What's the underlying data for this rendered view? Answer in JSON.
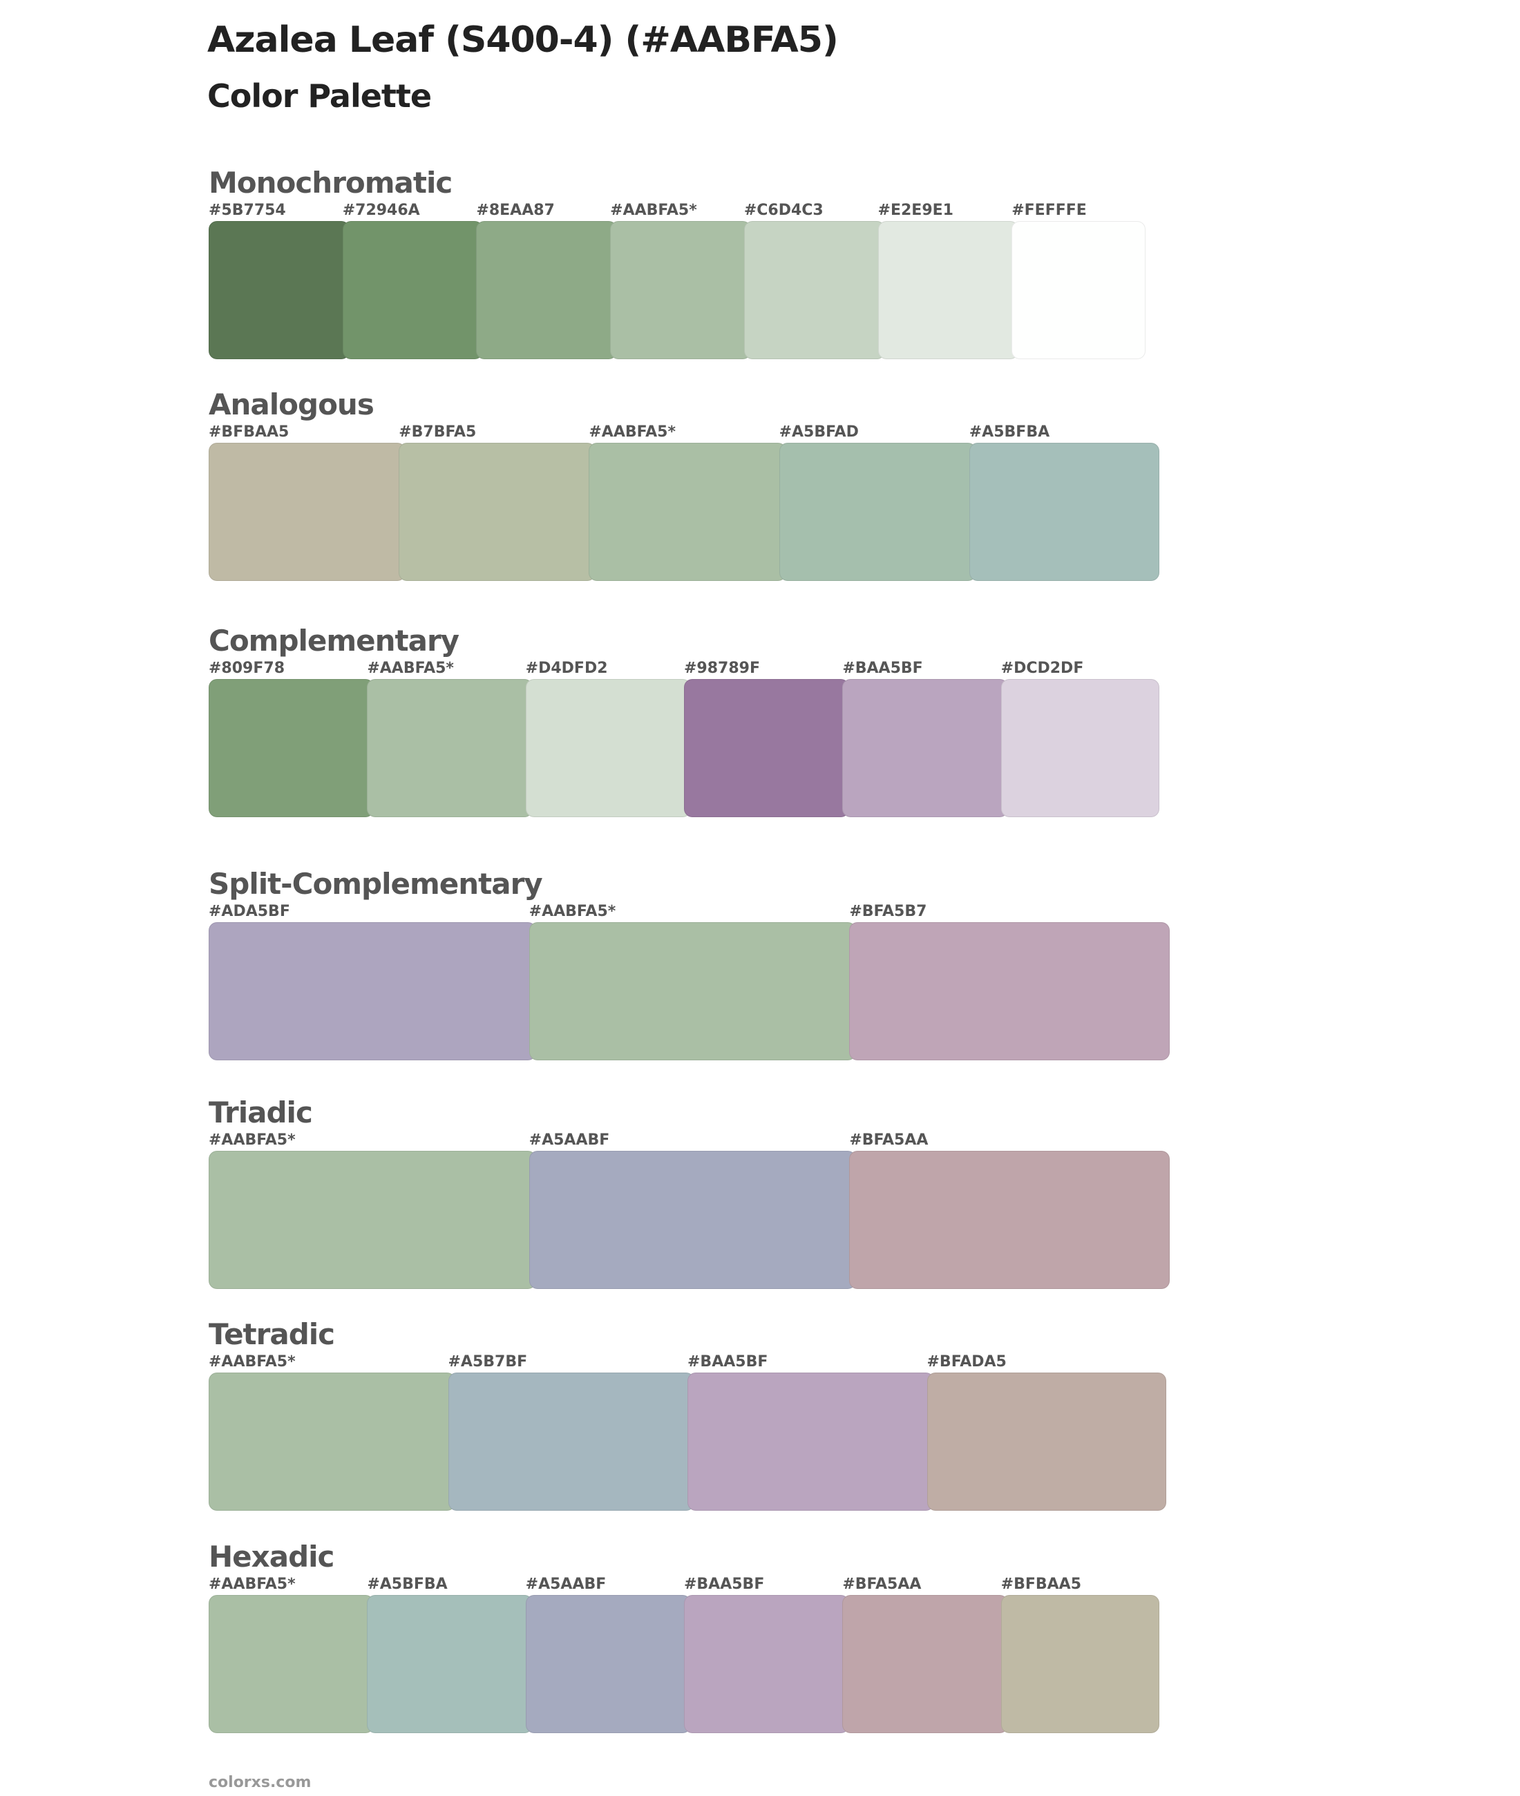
{
  "header": {
    "title": "Azalea Leaf (S400-4) (#AABFA5)",
    "subtitle": "Color Palette"
  },
  "sections": [
    {
      "title": "Monochromatic",
      "colors": [
        {
          "label": "#5B7754",
          "hex": "#5B7754"
        },
        {
          "label": "#72946A",
          "hex": "#72946A"
        },
        {
          "label": "#8EAA87",
          "hex": "#8EAA87"
        },
        {
          "label": "#AABFA5*",
          "hex": "#AABFA5"
        },
        {
          "label": "#C6D4C3",
          "hex": "#C6D4C3"
        },
        {
          "label": "#E2E9E1",
          "hex": "#E2E9E1"
        },
        {
          "label": "#FEFFFE",
          "hex": "#FEFFFE"
        }
      ]
    },
    {
      "title": "Analogous",
      "colors": [
        {
          "label": "#BFBAA5",
          "hex": "#BFBAA5"
        },
        {
          "label": "#B7BFA5",
          "hex": "#B7BFA5"
        },
        {
          "label": "#AABFA5*",
          "hex": "#AABFA5"
        },
        {
          "label": "#A5BFAD",
          "hex": "#A5BFAD"
        },
        {
          "label": "#A5BFBA",
          "hex": "#A5BFBA"
        }
      ]
    },
    {
      "title": "Complementary",
      "colors": [
        {
          "label": "#809F78",
          "hex": "#809F78"
        },
        {
          "label": "#AABFA5*",
          "hex": "#AABFA5"
        },
        {
          "label": "#D4DFD2",
          "hex": "#D4DFD2"
        },
        {
          "label": "#98789F",
          "hex": "#98789F"
        },
        {
          "label": "#BAA5BF",
          "hex": "#BAA5BF"
        },
        {
          "label": "#DCD2DF",
          "hex": "#DCD2DF"
        }
      ]
    },
    {
      "title": "Split-Complementary",
      "colors": [
        {
          "label": "#ADA5BF",
          "hex": "#ADA5BF"
        },
        {
          "label": "#AABFA5*",
          "hex": "#AABFA5"
        },
        {
          "label": "#BFA5B7",
          "hex": "#BFA5B7"
        }
      ]
    },
    {
      "title": "Triadic",
      "colors": [
        {
          "label": "#AABFA5*",
          "hex": "#AABFA5"
        },
        {
          "label": "#A5AABF",
          "hex": "#A5AABF"
        },
        {
          "label": "#BFA5AA",
          "hex": "#BFA5AA"
        }
      ]
    },
    {
      "title": "Tetradic",
      "colors": [
        {
          "label": "#AABFA5*",
          "hex": "#AABFA5"
        },
        {
          "label": "#A5B7BF",
          "hex": "#A5B7BF"
        },
        {
          "label": "#BAA5BF",
          "hex": "#BAA5BF"
        },
        {
          "label": "#BFADA5",
          "hex": "#BFADA5"
        }
      ]
    },
    {
      "title": "Hexadic",
      "colors": [
        {
          "label": "#AABFA5*",
          "hex": "#AABFA5"
        },
        {
          "label": "#A5BFBA",
          "hex": "#A5BFBA"
        },
        {
          "label": "#A5AABF",
          "hex": "#A5AABF"
        },
        {
          "label": "#BAA5BF",
          "hex": "#BAA5BF"
        },
        {
          "label": "#BFA5AA",
          "hex": "#BFA5AA"
        },
        {
          "label": "#BFBAA5",
          "hex": "#BFBAA5"
        }
      ]
    }
  ],
  "footer": {
    "text": "colorxs.com"
  }
}
